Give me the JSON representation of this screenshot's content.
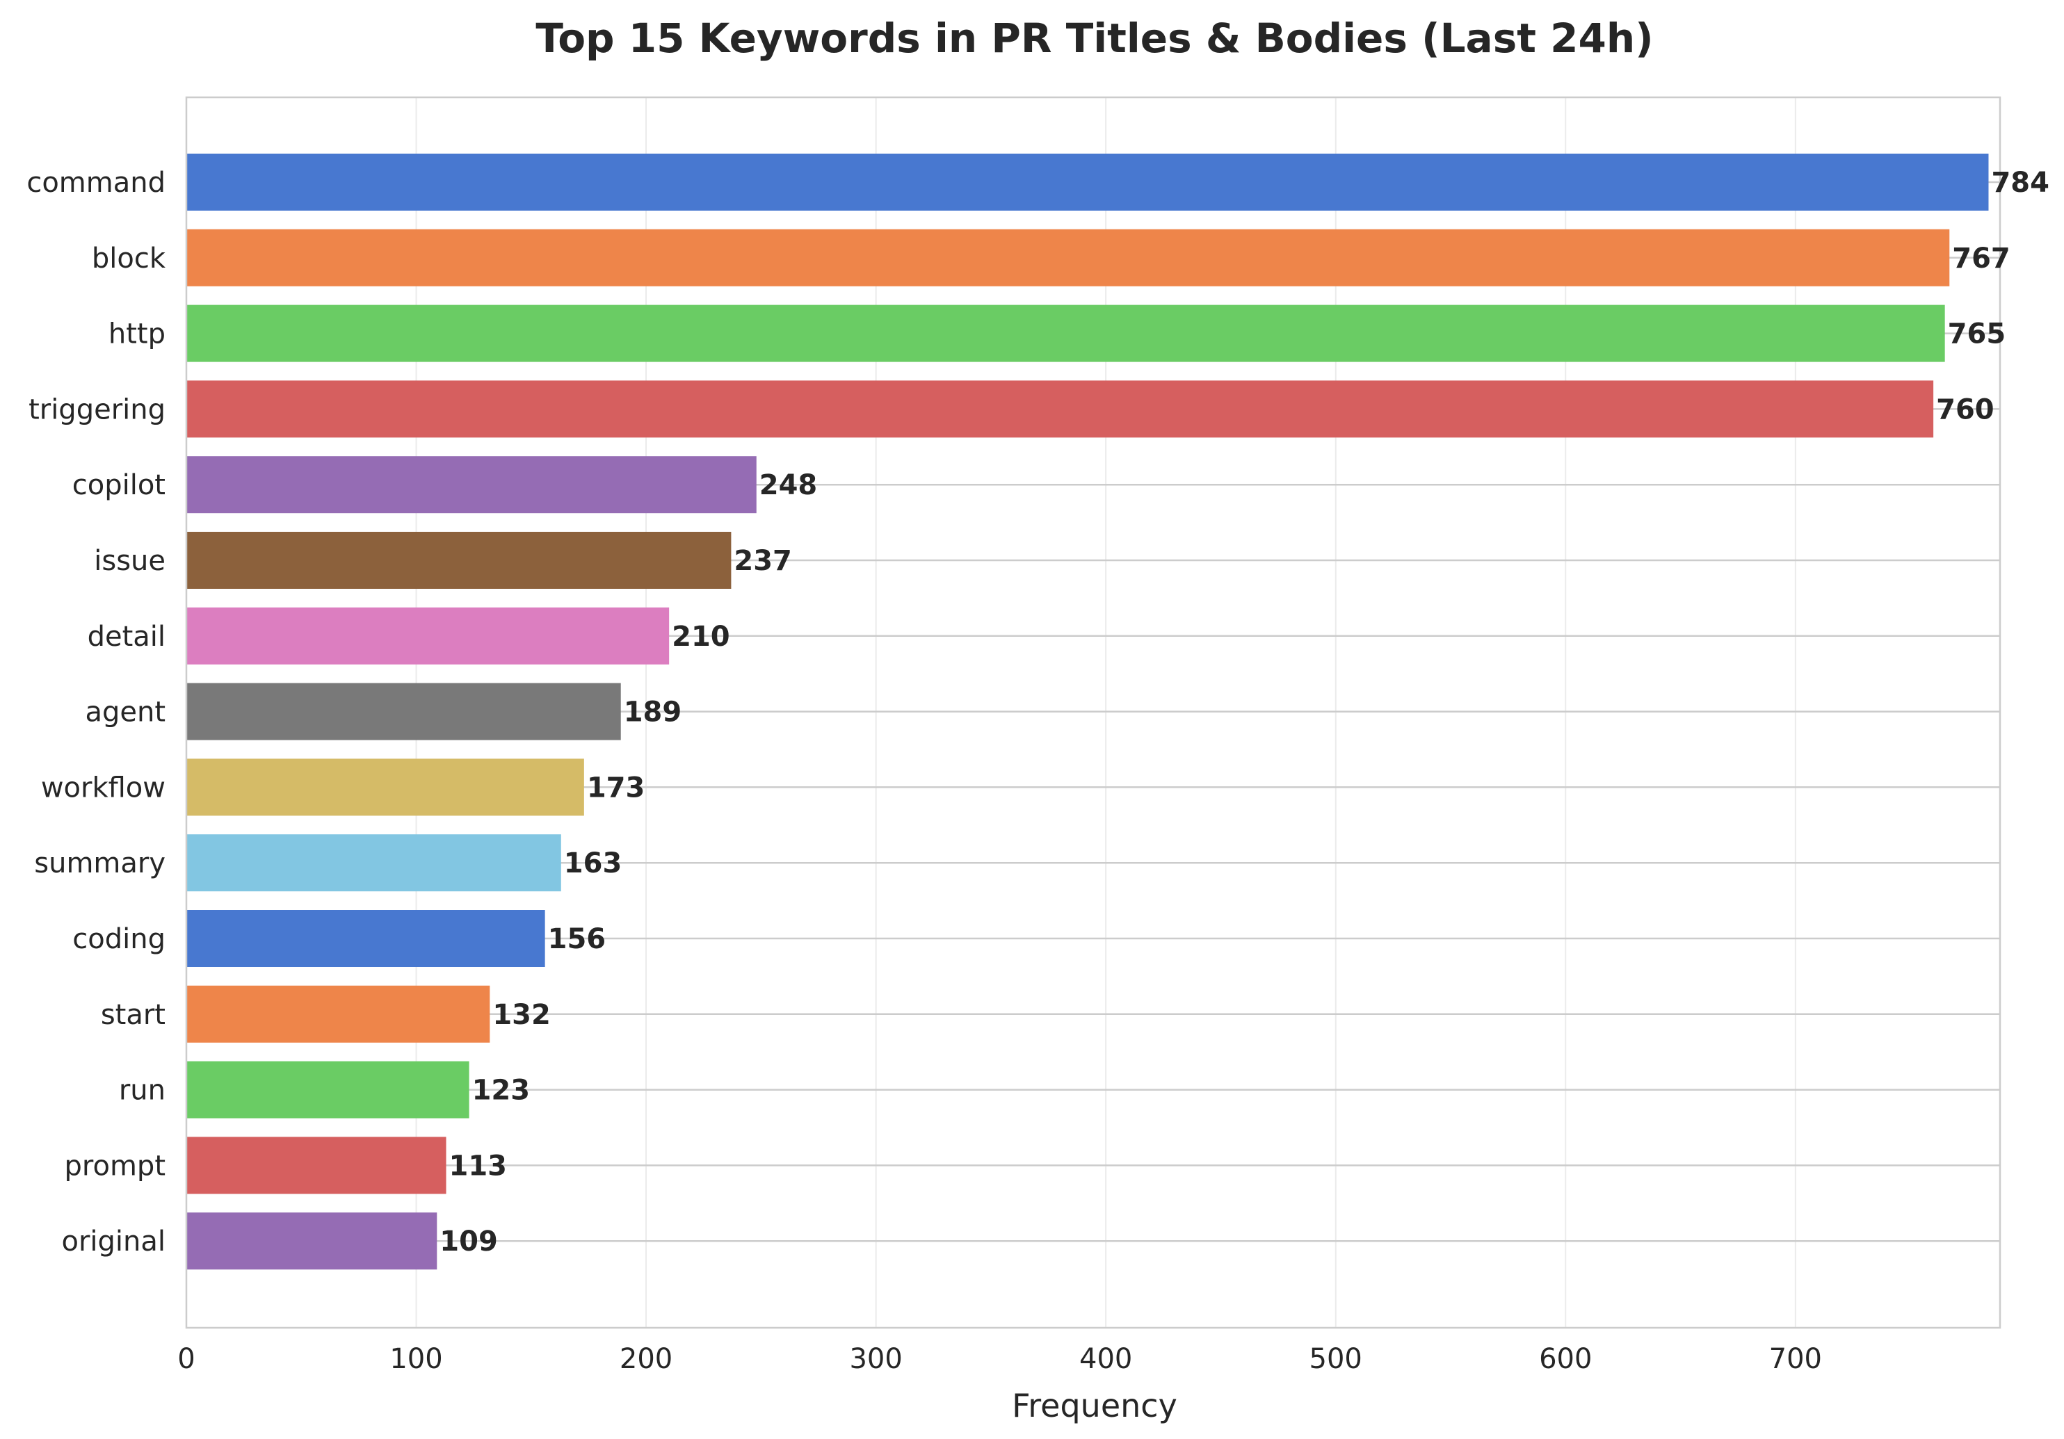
{
  "chart_data": {
    "type": "bar",
    "orientation": "horizontal",
    "title": "Top 15 Keywords in PR Titles & Bodies (Last 24h)",
    "xlabel": "Frequency",
    "ylabel": "",
    "xlim": [
      0,
      789
    ],
    "xticks": [
      0,
      100,
      200,
      300,
      400,
      500,
      600,
      700
    ],
    "grid": true,
    "legend": "none",
    "categories": [
      "command",
      "block",
      "http",
      "triggering",
      "copilot",
      "issue",
      "detail",
      "agent",
      "workflow",
      "summary",
      "coding",
      "start",
      "run",
      "prompt",
      "original"
    ],
    "values": [
      784,
      767,
      765,
      760,
      248,
      237,
      210,
      189,
      173,
      163,
      156,
      132,
      123,
      113,
      109
    ],
    "colors": [
      "#4878d0",
      "#ee854a",
      "#6acc64",
      "#d65f5f",
      "#956cb4",
      "#8c613c",
      "#dc7ec0",
      "#797979",
      "#d5bb67",
      "#82c6e2",
      "#4878d0",
      "#ee854a",
      "#6acc64",
      "#d65f5f",
      "#956cb4"
    ]
  }
}
